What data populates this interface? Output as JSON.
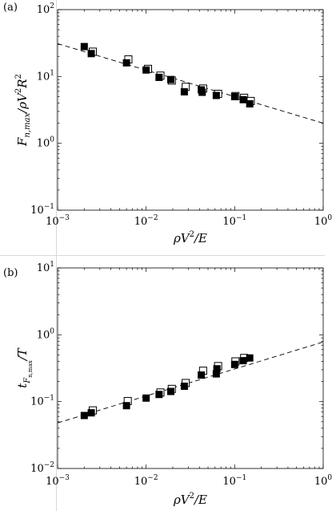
{
  "chart_data": [
    {
      "type": "scatter",
      "panel_label": "(a)",
      "xscale": "log",
      "yscale": "log",
      "xlim": [
        0.001,
        1
      ],
      "ylim": [
        0.1,
        100
      ],
      "x_ticks": [
        {
          "base": "10",
          "exp": "−3"
        },
        {
          "base": "10",
          "exp": "−2"
        },
        {
          "base": "10",
          "exp": "−1"
        },
        {
          "base": "10",
          "exp": "0"
        }
      ],
      "y_ticks": [
        {
          "base": "10",
          "exp": "−1"
        },
        {
          "base": "10",
          "exp": "0"
        },
        {
          "base": "10",
          "exp": "1"
        },
        {
          "base": "10",
          "exp": "2"
        }
      ],
      "xlabel_main": "ρV",
      "xlabel_sup": "2",
      "xlabel_tail": "/E",
      "ylabel_main": "F",
      "ylabel_sub": "n,max",
      "ylabel_mid": "/ρV",
      "ylabel_sup1": "2",
      "ylabel_r": "R",
      "ylabel_sup2": "2",
      "grid": false,
      "legend": "none",
      "fit_line": {
        "style": "dashed",
        "x": [
          0.001,
          1
        ],
        "y": [
          31,
          2.0
        ]
      },
      "points": [
        {
          "x": 0.002,
          "y": 28,
          "style": "filled"
        },
        {
          "x": 0.0024,
          "y": 22,
          "style": "filled"
        },
        {
          "x": 0.0025,
          "y": 23.5,
          "style": "open"
        },
        {
          "x": 0.006,
          "y": 16,
          "style": "filled"
        },
        {
          "x": 0.0063,
          "y": 18,
          "style": "open"
        },
        {
          "x": 0.01,
          "y": 12.5,
          "style": "filled"
        },
        {
          "x": 0.0105,
          "y": 13,
          "style": "open"
        },
        {
          "x": 0.014,
          "y": 9.7,
          "style": "filled"
        },
        {
          "x": 0.0145,
          "y": 10.3,
          "style": "open"
        },
        {
          "x": 0.019,
          "y": 9,
          "style": "filled"
        },
        {
          "x": 0.0195,
          "y": 8.7,
          "style": "open"
        },
        {
          "x": 0.027,
          "y": 5.9,
          "style": "filled"
        },
        {
          "x": 0.028,
          "y": 7,
          "style": "open"
        },
        {
          "x": 0.042,
          "y": 6.3,
          "style": "filled"
        },
        {
          "x": 0.043,
          "y": 5.8,
          "style": "filled"
        },
        {
          "x": 0.044,
          "y": 6.6,
          "style": "open"
        },
        {
          "x": 0.062,
          "y": 5.2,
          "style": "filled"
        },
        {
          "x": 0.065,
          "y": 5.5,
          "style": "open"
        },
        {
          "x": 0.1,
          "y": 5,
          "style": "filled"
        },
        {
          "x": 0.102,
          "y": 5.1,
          "style": "open"
        },
        {
          "x": 0.125,
          "y": 4.5,
          "style": "filled"
        },
        {
          "x": 0.128,
          "y": 4.8,
          "style": "open"
        },
        {
          "x": 0.148,
          "y": 3.9,
          "style": "filled"
        },
        {
          "x": 0.152,
          "y": 4.3,
          "style": "open"
        }
      ]
    },
    {
      "type": "scatter",
      "panel_label": "(b)",
      "xscale": "log",
      "yscale": "log",
      "xlim": [
        0.001,
        1
      ],
      "ylim": [
        0.01,
        10
      ],
      "x_ticks": [
        {
          "base": "10",
          "exp": "−3"
        },
        {
          "base": "10",
          "exp": "−2"
        },
        {
          "base": "10",
          "exp": "−1"
        },
        {
          "base": "10",
          "exp": "0"
        }
      ],
      "y_ticks": [
        {
          "base": "10",
          "exp": "−2"
        },
        {
          "base": "10",
          "exp": "−1"
        },
        {
          "base": "10",
          "exp": "0"
        },
        {
          "base": "10",
          "exp": "1"
        }
      ],
      "xlabel_main": "ρV",
      "xlabel_sup": "2",
      "xlabel_tail": "/E",
      "ylabel_main": "t",
      "ylabel_sub": "F",
      "ylabel_sub2": "n,max",
      "ylabel_tail": "/T",
      "grid": false,
      "legend": "none",
      "fit_line": {
        "style": "dashed",
        "x": [
          0.001,
          1
        ],
        "y": [
          0.048,
          0.78
        ]
      },
      "points": [
        {
          "x": 0.002,
          "y": 0.062,
          "style": "filled"
        },
        {
          "x": 0.0024,
          "y": 0.068,
          "style": "filled"
        },
        {
          "x": 0.0025,
          "y": 0.074,
          "style": "open"
        },
        {
          "x": 0.006,
          "y": 0.087,
          "style": "filled"
        },
        {
          "x": 0.0062,
          "y": 0.102,
          "style": "open"
        },
        {
          "x": 0.01,
          "y": 0.113,
          "style": "filled"
        },
        {
          "x": 0.014,
          "y": 0.128,
          "style": "filled"
        },
        {
          "x": 0.0145,
          "y": 0.137,
          "style": "open"
        },
        {
          "x": 0.019,
          "y": 0.142,
          "style": "filled"
        },
        {
          "x": 0.0195,
          "y": 0.155,
          "style": "open"
        },
        {
          "x": 0.027,
          "y": 0.17,
          "style": "filled"
        },
        {
          "x": 0.028,
          "y": 0.19,
          "style": "open"
        },
        {
          "x": 0.042,
          "y": 0.25,
          "style": "filled"
        },
        {
          "x": 0.044,
          "y": 0.29,
          "style": "open"
        },
        {
          "x": 0.062,
          "y": 0.26,
          "style": "filled"
        },
        {
          "x": 0.063,
          "y": 0.31,
          "style": "filled"
        },
        {
          "x": 0.065,
          "y": 0.34,
          "style": "open"
        },
        {
          "x": 0.1,
          "y": 0.36,
          "style": "filled"
        },
        {
          "x": 0.102,
          "y": 0.4,
          "style": "open"
        },
        {
          "x": 0.125,
          "y": 0.41,
          "style": "filled"
        },
        {
          "x": 0.128,
          "y": 0.45,
          "style": "open"
        },
        {
          "x": 0.148,
          "y": 0.45,
          "style": "filled"
        }
      ]
    }
  ]
}
